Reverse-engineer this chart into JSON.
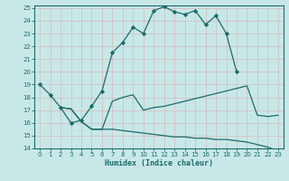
{
  "xlabel": "Humidex (Indice chaleur)",
  "bg_color": "#c8e8e8",
  "grid_color": "#b0d0d0",
  "line_color": "#1a6b6b",
  "xlim": [
    -0.5,
    23.5
  ],
  "ylim": [
    14,
    25.2
  ],
  "xticks": [
    0,
    1,
    2,
    3,
    4,
    5,
    6,
    7,
    8,
    9,
    10,
    11,
    12,
    13,
    14,
    15,
    16,
    17,
    18,
    19,
    20,
    21,
    22,
    23
  ],
  "yticks": [
    14,
    15,
    16,
    17,
    18,
    19,
    20,
    21,
    22,
    23,
    24,
    25
  ],
  "line1_x": [
    0,
    1,
    2,
    3,
    4,
    5,
    6,
    7,
    8,
    9,
    10,
    11,
    12,
    13,
    14,
    15,
    16,
    17,
    18,
    19
  ],
  "line1_y": [
    19.0,
    18.2,
    17.2,
    16.0,
    16.2,
    17.3,
    18.5,
    21.5,
    22.3,
    23.5,
    23.0,
    24.8,
    25.1,
    24.7,
    24.5,
    24.8,
    23.7,
    24.4,
    23.0,
    20.0
  ],
  "line2_x": [
    2,
    3,
    4,
    5,
    6,
    7,
    8,
    9,
    10,
    11,
    12,
    13,
    14,
    15,
    16,
    17,
    18,
    19,
    20,
    21,
    22,
    23
  ],
  "line2_y": [
    17.2,
    17.1,
    16.1,
    15.5,
    15.5,
    17.7,
    18.0,
    18.2,
    17.0,
    17.2,
    17.3,
    17.5,
    17.7,
    17.9,
    18.1,
    18.3,
    18.5,
    18.7,
    18.9,
    16.6,
    16.5,
    16.6
  ],
  "line3_x": [
    2,
    3,
    4,
    5,
    6,
    7,
    8,
    9,
    10,
    11,
    12,
    13,
    14,
    15,
    16,
    17,
    18,
    19,
    20,
    21,
    22,
    23
  ],
  "line3_y": [
    17.2,
    17.1,
    16.1,
    15.5,
    15.5,
    15.5,
    15.4,
    15.3,
    15.2,
    15.1,
    15.0,
    14.9,
    14.9,
    14.8,
    14.8,
    14.7,
    14.7,
    14.6,
    14.5,
    14.3,
    14.1,
    13.8
  ]
}
